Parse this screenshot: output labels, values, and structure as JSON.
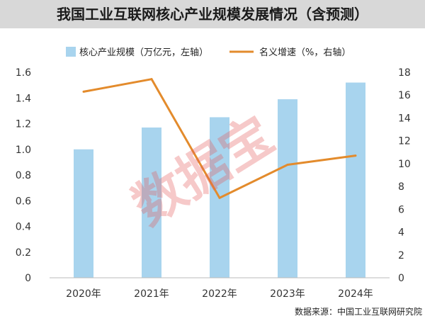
{
  "chart_data": {
    "type": "bar+line",
    "title": "我国工业互联网核心产业规模发展情况（含预测）",
    "categories": [
      "2020年",
      "2021年",
      "2022年",
      "2023年",
      "2024年"
    ],
    "series": [
      {
        "name": "核心产业规模（万亿元，左轴）",
        "type": "bar",
        "axis": "left",
        "values": [
          1.0,
          1.17,
          1.25,
          1.39,
          1.52
        ],
        "color": "#a8d4ee"
      },
      {
        "name": "名义增速（%，右轴）",
        "type": "line",
        "axis": "right",
        "values": [
          16.3,
          17.4,
          7.0,
          9.9,
          10.7
        ],
        "color": "#e38b2c"
      }
    ],
    "y_left": {
      "min": 0,
      "max": 1.6,
      "step": 0.2,
      "ticks": [
        "0",
        "0.2",
        "0.4",
        "0.6",
        "0.8",
        "1.0",
        "1.2",
        "1.4",
        "1.6"
      ]
    },
    "y_right": {
      "min": 0,
      "max": 18,
      "step": 2,
      "ticks": [
        "0",
        "2",
        "4",
        "6",
        "8",
        "10",
        "12",
        "14",
        "16",
        "18"
      ]
    },
    "grid": false,
    "legend_position": "top"
  },
  "source": "数据来源：中国工业互联网研究院",
  "watermark": "数据宝"
}
